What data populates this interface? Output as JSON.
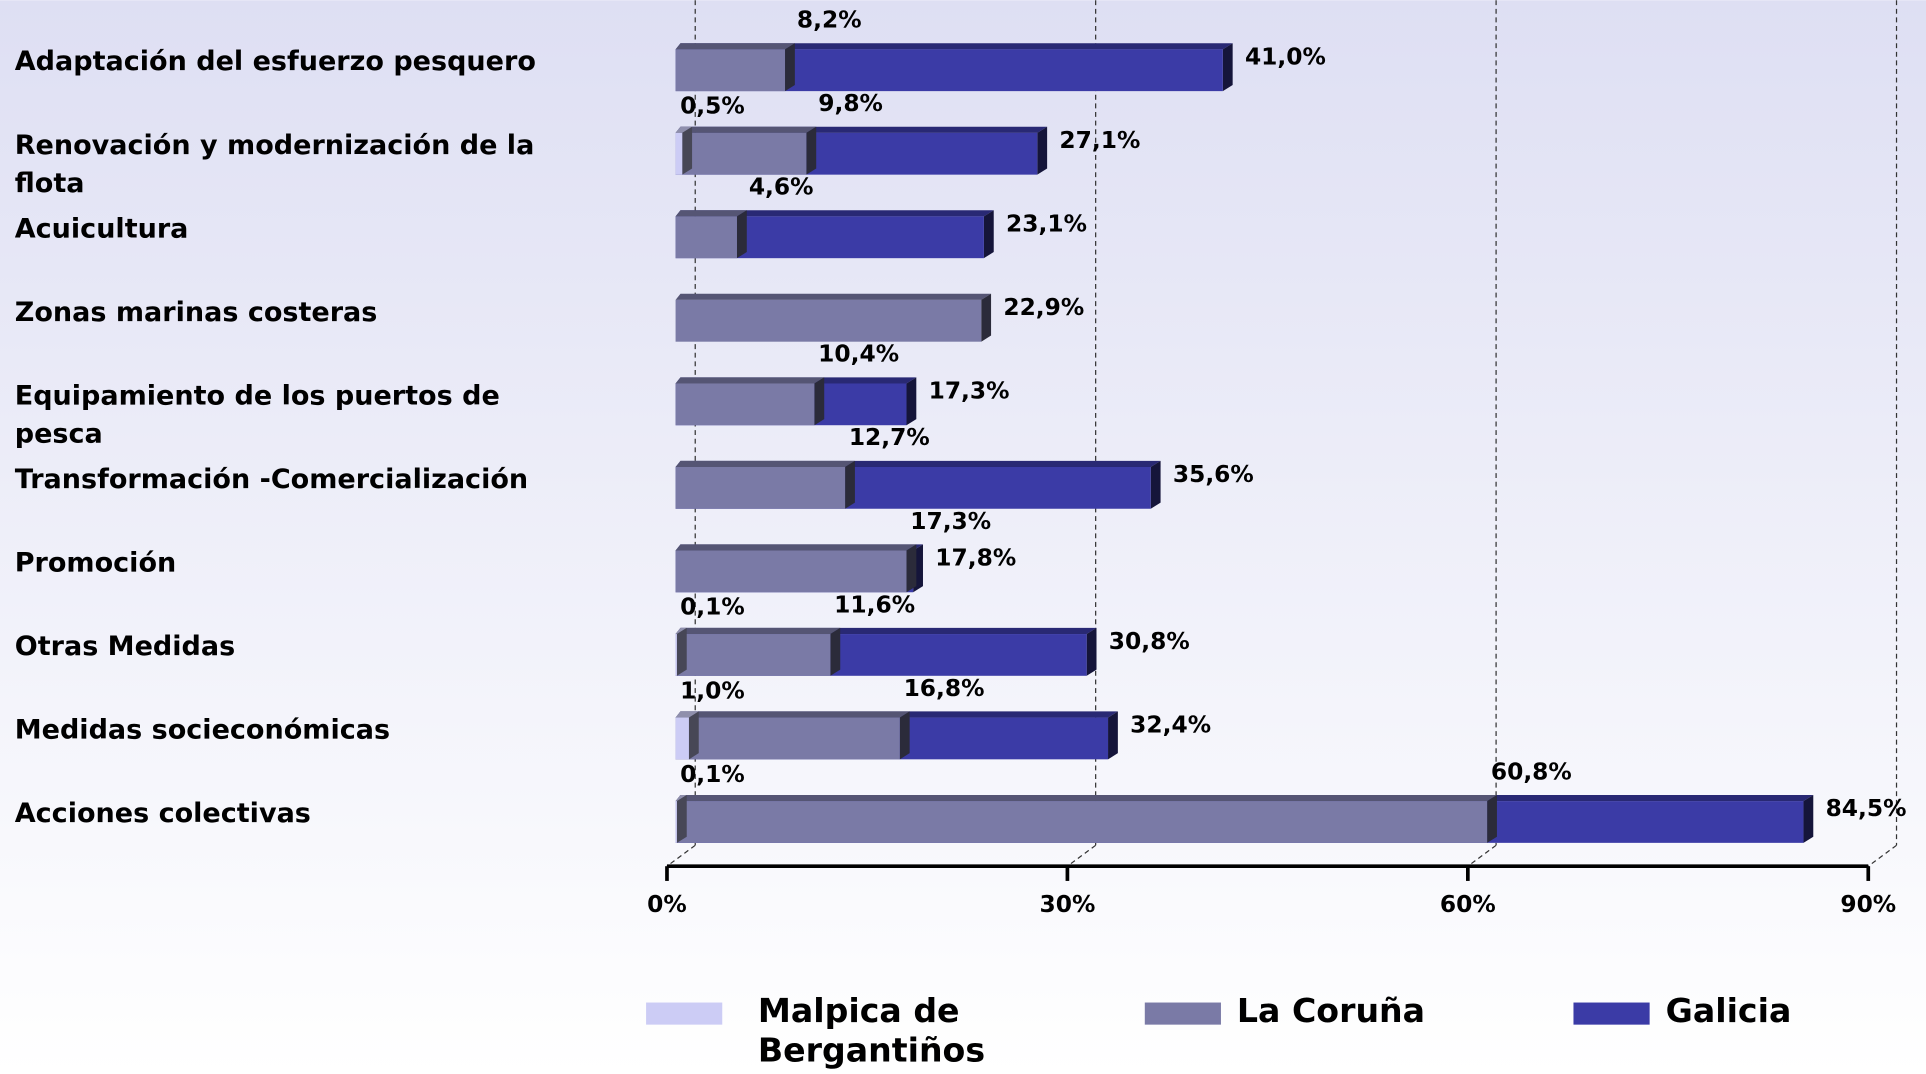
{
  "chart_data": {
    "type": "bar",
    "orientation": "horizontal",
    "categories": [
      "Adaptación del esfuerzo pesquero",
      "Renovación y modernización de la flota",
      "Acuicultura",
      "Zonas marinas costeras",
      "Equipamiento de los puertos de pesca",
      "Transformación -Comercialización",
      "Promoción",
      "Otras Medidas",
      "Medidas socieconómicas",
      "Acciones colectivas"
    ],
    "series": [
      {
        "name": "Malpica de Bergantiños",
        "color": "#ccccf5",
        "values": [
          null,
          0.5,
          null,
          null,
          null,
          null,
          null,
          0.1,
          1.0,
          0.1
        ],
        "value_labels": [
          null,
          "0,5%",
          null,
          null,
          null,
          null,
          null,
          "0,1%",
          "1,0%",
          "0,1%"
        ]
      },
      {
        "name": "La Coruña",
        "color": "#7a7aa6",
        "values": [
          8.2,
          9.8,
          4.6,
          22.9,
          10.4,
          12.7,
          17.3,
          11.6,
          16.8,
          60.8
        ],
        "value_labels": [
          "8,2%",
          "9,8%",
          "4,6%",
          "22,9%",
          "10,4%",
          "12,7%",
          "17,3%",
          "11,6%",
          "16,8%",
          "60,8%"
        ]
      },
      {
        "name": "Galicia",
        "color": "#3b3ba6",
        "values": [
          41.0,
          27.1,
          23.1,
          null,
          17.3,
          35.6,
          17.8,
          30.8,
          32.4,
          84.5
        ],
        "value_labels": [
          "41,0%",
          "27,1%",
          "23,1%",
          null,
          "17,3%",
          "35,6%",
          "17,8%",
          "30,8%",
          "32,4%",
          "84,5%"
        ]
      }
    ],
    "xlim": [
      0,
      90
    ],
    "xticks": [
      {
        "value": 0,
        "label": "0%"
      },
      {
        "value": 30,
        "label": "30%"
      },
      {
        "value": 60,
        "label": "60%"
      },
      {
        "value": 90,
        "label": "90%"
      }
    ],
    "grid": true,
    "legend": "bottom"
  }
}
